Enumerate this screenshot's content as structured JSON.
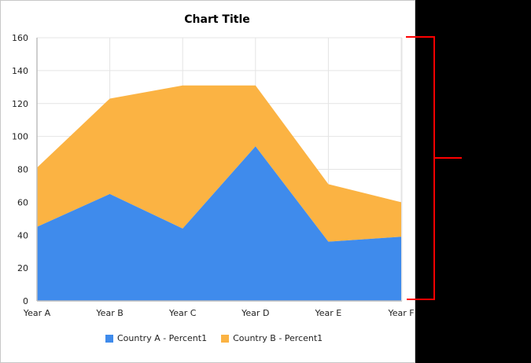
{
  "chart_data": {
    "type": "area",
    "stacked": true,
    "title": "Chart Title",
    "xlabel": "",
    "ylabel": "",
    "categories": [
      "Year A",
      "Year B",
      "Year C",
      "Year D",
      "Year E",
      "Year F"
    ],
    "series": [
      {
        "name": "Country A - Percent1",
        "color": "#3f8bec",
        "values": [
          45,
          65,
          44,
          94,
          36,
          39
        ]
      },
      {
        "name": "Country B - Percent1",
        "color": "#fbb343",
        "values": [
          36,
          58,
          87,
          37,
          35,
          21
        ]
      }
    ],
    "stacked_totals": [
      81,
      123,
      131,
      131,
      71,
      60
    ],
    "ylim": [
      0,
      160
    ],
    "yticks": [
      0,
      20,
      40,
      60,
      80,
      100,
      120,
      140,
      160
    ],
    "grid": true,
    "legend_position": "bottom"
  },
  "legend": {
    "items": [
      {
        "label": "Country A - Percent1",
        "color": "#3f8bec"
      },
      {
        "label": "Country B - Percent1",
        "color": "#fbb343"
      }
    ]
  },
  "annotation": {
    "type": "bracket",
    "color": "#ff0000"
  }
}
